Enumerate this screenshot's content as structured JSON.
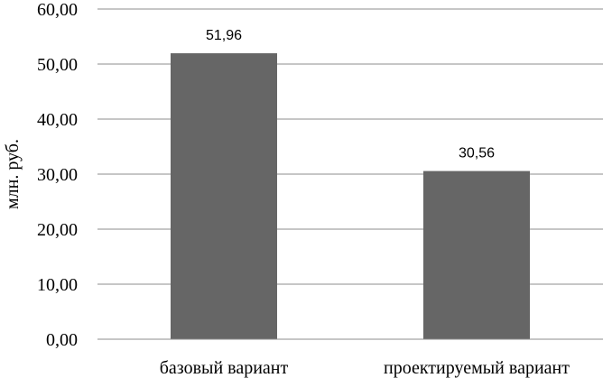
{
  "chart_data": {
    "type": "bar",
    "categories": [
      "базовый вариант",
      "проектируемый вариант"
    ],
    "values": [
      51.96,
      30.56
    ],
    "data_labels": [
      "51,96",
      "30,56"
    ],
    "ylabel": "млн. руб.",
    "ylim": [
      0,
      60
    ],
    "y_ticks": [
      "0,00",
      "10,00",
      "20,00",
      "30,00",
      "40,00",
      "50,00",
      "60,00"
    ],
    "grid": true,
    "bar_color": "#666666",
    "grid_color": "#8c8c8c"
  }
}
